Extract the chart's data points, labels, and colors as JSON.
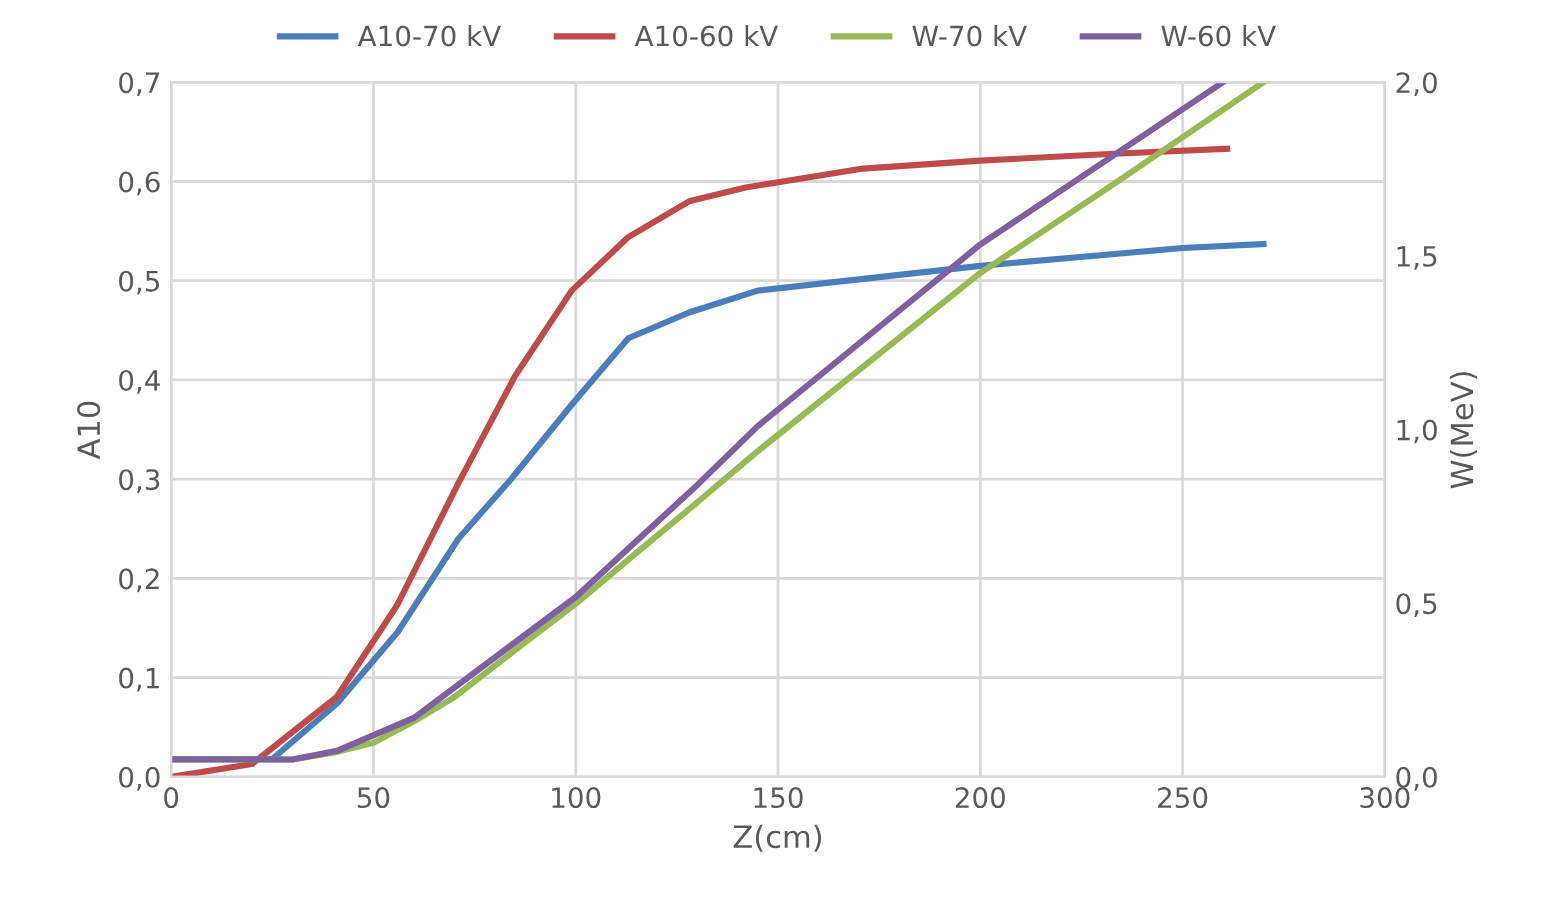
{
  "chart_data": {
    "type": "line",
    "xlabel": "Z(cm)",
    "ylabel": "A10",
    "y2label": "W(MeV)",
    "xlim": [
      0,
      300
    ],
    "xticks": [
      0,
      50,
      100,
      150,
      200,
      250,
      300
    ],
    "ylim": [
      0,
      0.7
    ],
    "yticks": [
      {
        "value": 0,
        "label": "0,0"
      },
      {
        "value": 0.1,
        "label": "0,1"
      },
      {
        "value": 0.2,
        "label": "0,2"
      },
      {
        "value": 0.3,
        "label": "0,3"
      },
      {
        "value": 0.4,
        "label": "0,4"
      },
      {
        "value": 0.5,
        "label": "0,5"
      },
      {
        "value": 0.6,
        "label": "0,6"
      },
      {
        "value": 0.7,
        "label": "0,7"
      }
    ],
    "y2lim": [
      0,
      2.0
    ],
    "y2ticks": [
      {
        "value": 0,
        "label": "0,0"
      },
      {
        "value": 0.5,
        "label": "0,5"
      },
      {
        "value": 1.0,
        "label": "1,0"
      },
      {
        "value": 1.5,
        "label": "1,5"
      },
      {
        "value": 2.0,
        "label": "2,0"
      }
    ],
    "grid": true,
    "legend": "top",
    "marker": "none",
    "line_style": "solid",
    "series": [
      {
        "name": "A10-70 kV",
        "color": "#4a7ebb",
        "x": [
          0,
          25,
          41,
          56,
          71,
          84,
          99,
          113,
          128,
          145,
          200,
          250,
          270
        ],
        "values": [
          0.018,
          0.018,
          0.074,
          0.146,
          0.24,
          0.3,
          0.375,
          0.442,
          0.468,
          0.49,
          0.515,
          0.533,
          0.537
        ]
      },
      {
        "name": "A10-60 kV",
        "color": "#be4b48",
        "x": [
          0,
          20,
          41,
          56,
          71,
          85,
          99,
          113,
          128,
          142,
          171,
          200,
          233,
          261
        ],
        "values": [
          0.0,
          0.013,
          0.081,
          0.174,
          0.296,
          0.404,
          0.49,
          0.544,
          0.58,
          0.594,
          0.613,
          0.621,
          0.628,
          0.633
        ]
      },
      {
        "name": "W-70 kV",
        "color": "#98b954",
        "axis": "y2",
        "x": [
          0,
          30,
          41,
          50,
          60,
          70,
          85,
          100,
          115,
          130,
          145,
          200,
          233,
          270
        ],
        "values": [
          0.05,
          0.05,
          0.072,
          0.098,
          0.16,
          0.23,
          0.365,
          0.498,
          0.645,
          0.79,
          0.938,
          1.451,
          1.707,
          2.0
        ]
      },
      {
        "name": "W-60 kV",
        "color": "#7d60a0",
        "axis": "y2",
        "x": [
          0,
          30,
          41,
          60,
          100,
          130,
          145,
          200,
          260
        ],
        "values": [
          0.05,
          0.05,
          0.075,
          0.17,
          0.518,
          0.84,
          1.01,
          1.533,
          2.0
        ]
      }
    ]
  }
}
